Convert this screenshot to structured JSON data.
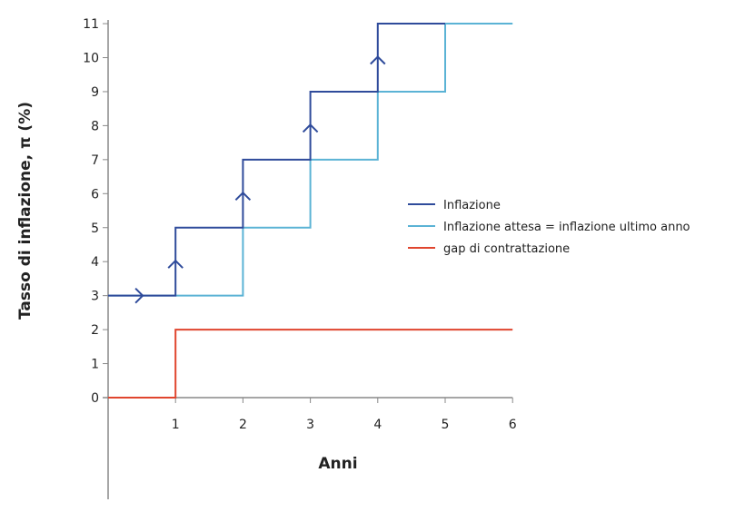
{
  "chart_data": {
    "type": "line",
    "step": true,
    "xlabel": "Anni",
    "ylabel": "Tasso di inflazione, π (%)",
    "xlim": [
      0,
      6
    ],
    "ylim": [
      0,
      11
    ],
    "xticks": [
      "1",
      "2",
      "3",
      "4",
      "5",
      "6"
    ],
    "yticks": [
      "0",
      "1",
      "2",
      "3",
      "4",
      "5",
      "6",
      "7",
      "8",
      "9",
      "10",
      "11"
    ],
    "grid": false,
    "legend_position": "right",
    "series": [
      {
        "name": "Inflazione",
        "color": "#2f4b9b",
        "points": [
          [
            0,
            3
          ],
          [
            1,
            3
          ],
          [
            1,
            5
          ],
          [
            2,
            5
          ],
          [
            2,
            7
          ],
          [
            3,
            7
          ],
          [
            3,
            9
          ],
          [
            4,
            9
          ],
          [
            4,
            11
          ],
          [
            5,
            11
          ]
        ]
      },
      {
        "name": "Inflazione attesa = inflazione ultimo anno",
        "color": "#5bb3d5",
        "points": [
          [
            0,
            3
          ],
          [
            2,
            3
          ],
          [
            2,
            5
          ],
          [
            3,
            5
          ],
          [
            3,
            7
          ],
          [
            4,
            7
          ],
          [
            4,
            9
          ],
          [
            5,
            9
          ],
          [
            5,
            11
          ],
          [
            6,
            11
          ]
        ]
      },
      {
        "name": "gap di contrattazione",
        "color": "#e0452e",
        "points": [
          [
            0,
            0
          ],
          [
            1,
            0
          ],
          [
            1,
            2
          ],
          [
            6,
            2
          ]
        ]
      }
    ],
    "arrows": [
      {
        "at": [
          0.5,
          3
        ],
        "direction": "right"
      },
      {
        "at": [
          1,
          4
        ],
        "direction": "up"
      },
      {
        "at": [
          2,
          6
        ],
        "direction": "up"
      },
      {
        "at": [
          3,
          8
        ],
        "direction": "up"
      },
      {
        "at": [
          4,
          10
        ],
        "direction": "up"
      }
    ]
  }
}
